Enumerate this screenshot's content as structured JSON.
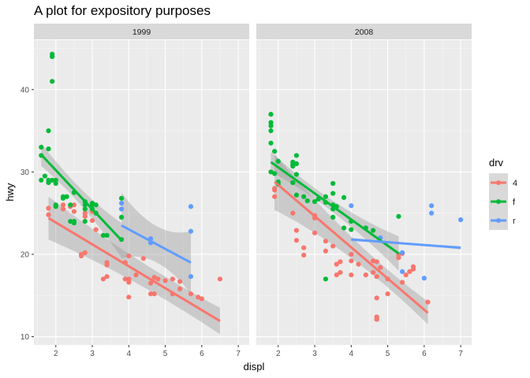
{
  "chart_data": {
    "type": "scatter",
    "title": "A plot for expository purposes",
    "xlabel": "displ",
    "ylabel": "hwy",
    "xlim": [
      1.4,
      7.3
    ],
    "ylim": [
      9,
      46
    ],
    "x_ticks": [
      2,
      3,
      4,
      5,
      6,
      7
    ],
    "y_ticks": [
      10,
      20,
      30,
      40
    ],
    "legend": {
      "title": "drv",
      "position": "right",
      "entries": [
        {
          "key": "4",
          "label": "4",
          "color": "#F8766D"
        },
        {
          "key": "f",
          "label": "f",
          "color": "#00BA38"
        },
        {
          "key": "r",
          "label": "r",
          "color": "#619CFF"
        }
      ]
    },
    "facets": [
      {
        "label": "1999",
        "points": {
          "4": [
            [
              1.8,
              25.6
            ],
            [
              1.8,
              24.8
            ],
            [
              2.2,
              26
            ],
            [
              2.2,
              25.5
            ],
            [
              2.4,
              25.8
            ],
            [
              2.5,
              26
            ],
            [
              2.5,
              25.2
            ],
            [
              2.7,
              20
            ],
            [
              2.7,
              19.8
            ],
            [
              2.8,
              20.2
            ],
            [
              2.8,
              25
            ],
            [
              2.8,
              24.6
            ],
            [
              3.0,
              25.2
            ],
            [
              3.0,
              24.1
            ],
            [
              3.1,
              23
            ],
            [
              3.3,
              17
            ],
            [
              3.4,
              17.3
            ],
            [
              3.4,
              19
            ],
            [
              3.4,
              18.7
            ],
            [
              3.9,
              19
            ],
            [
              3.9,
              17
            ],
            [
              4.0,
              19.8
            ],
            [
              4.0,
              17
            ],
            [
              4.0,
              16.8
            ],
            [
              4.0,
              16.6
            ],
            [
              4.0,
              14.8
            ],
            [
              4.2,
              17.5
            ],
            [
              4.4,
              19.5
            ],
            [
              4.6,
              16.5
            ],
            [
              4.6,
              15.2
            ],
            [
              4.7,
              17.2
            ],
            [
              4.7,
              15.2
            ],
            [
              4.8,
              17
            ],
            [
              5.0,
              16.8
            ],
            [
              5.2,
              17
            ],
            [
              5.2,
              15.2
            ],
            [
              5.4,
              16.7
            ],
            [
              5.4,
              15.8
            ],
            [
              5.7,
              15.2
            ],
            [
              5.9,
              14.8
            ],
            [
              6.0,
              14.6
            ],
            [
              6.5,
              17
            ]
          ],
          "f": [
            [
              1.6,
              32
            ],
            [
              1.6,
              29
            ],
            [
              1.6,
              33
            ],
            [
              1.7,
              29.5
            ],
            [
              1.8,
              35
            ],
            [
              1.8,
              32.8
            ],
            [
              1.8,
              29
            ],
            [
              1.8,
              28.7
            ],
            [
              1.9,
              44
            ],
            [
              1.9,
              44.3
            ],
            [
              1.9,
              41
            ],
            [
              1.9,
              29
            ],
            [
              2.0,
              28.6
            ],
            [
              2.0,
              29
            ],
            [
              2.0,
              26
            ],
            [
              2.0,
              25.8
            ],
            [
              2.2,
              27
            ],
            [
              2.2,
              26.8
            ],
            [
              2.3,
              27
            ],
            [
              2.4,
              26
            ],
            [
              2.4,
              24
            ],
            [
              2.5,
              27.5
            ],
            [
              2.5,
              24
            ],
            [
              2.5,
              23.8
            ],
            [
              2.8,
              26
            ],
            [
              2.8,
              25.5
            ],
            [
              2.8,
              26.4
            ],
            [
              2.8,
              24
            ],
            [
              3.0,
              26.2
            ],
            [
              3.0,
              26
            ],
            [
              3.0,
              25.5
            ],
            [
              3.1,
              26
            ],
            [
              3.1,
              25
            ],
            [
              3.3,
              22.3
            ],
            [
              3.4,
              22.3
            ],
            [
              3.8,
              26.8
            ],
            [
              3.8,
              24.5
            ],
            [
              3.8,
              21.8
            ]
          ],
          "r": [
            [
              3.8,
              26.2
            ],
            [
              3.8,
              25.5
            ],
            [
              4.6,
              21.9
            ],
            [
              4.6,
              21.4
            ],
            [
              5.7,
              25.8
            ],
            [
              5.7,
              22.8
            ],
            [
              5.7,
              17.3
            ]
          ]
        },
        "trend": {
          "4": {
            "x": [
              1.8,
              6.5
            ],
            "y": [
              24.4,
              11.9
            ],
            "band": [
              2.6,
              1.5,
              1.6
            ]
          },
          "f": {
            "x": [
              1.6,
              3.8
            ],
            "y": [
              32.1,
              21.7
            ],
            "band": [
              1.4,
              1.0,
              2.1
            ]
          },
          "r": {
            "x": [
              3.8,
              5.7
            ],
            "y": [
              23.5,
              19.0
            ],
            "band": [
              4.0,
              2.2,
              3.8
            ]
          }
        }
      },
      {
        "label": "2008",
        "points": {
          "4": [
            [
              1.9,
              28
            ],
            [
              1.9,
              27.8
            ],
            [
              1.9,
              27
            ],
            [
              2.0,
              28.7
            ],
            [
              2.4,
              25
            ],
            [
              2.5,
              22.9
            ],
            [
              2.5,
              21.7
            ],
            [
              2.7,
              20.8
            ],
            [
              2.7,
              19.9
            ],
            [
              3.0,
              24.7
            ],
            [
              3.0,
              24.4
            ],
            [
              3.0,
              22.6
            ],
            [
              3.3,
              21.6
            ],
            [
              3.3,
              20.4
            ],
            [
              3.5,
              21
            ],
            [
              3.6,
              18.8
            ],
            [
              3.6,
              17.5
            ],
            [
              3.7,
              19.1
            ],
            [
              3.7,
              17.8
            ],
            [
              4.0,
              20
            ],
            [
              4.0,
              19.2
            ],
            [
              4.0,
              17.5
            ],
            [
              4.2,
              18.8
            ],
            [
              4.4,
              17.5
            ],
            [
              4.6,
              19.2
            ],
            [
              4.6,
              17.8
            ],
            [
              4.7,
              19.1
            ],
            [
              4.7,
              17.3
            ],
            [
              4.7,
              14.7
            ],
            [
              4.7,
              12.4
            ],
            [
              4.7,
              12.1
            ],
            [
              4.8,
              18.4
            ],
            [
              5.0,
              17
            ],
            [
              5.0,
              15.2
            ],
            [
              5.3,
              20
            ],
            [
              5.3,
              19.6
            ],
            [
              5.4,
              16.6
            ],
            [
              5.4,
              20.1
            ],
            [
              5.5,
              17.5
            ],
            [
              5.6,
              17.9
            ],
            [
              5.7,
              18.5
            ],
            [
              5.7,
              18.2
            ],
            [
              6.1,
              14.2
            ]
          ],
          "f": [
            [
              1.8,
              35
            ],
            [
              1.8,
              36
            ],
            [
              1.8,
              37
            ],
            [
              1.8,
              35.6
            ],
            [
              1.8,
              33.5
            ],
            [
              1.8,
              30
            ],
            [
              1.9,
              32.5
            ],
            [
              1.9,
              29.8
            ],
            [
              2.0,
              31.3
            ],
            [
              2.0,
              28.8
            ],
            [
              2.0,
              28.5
            ],
            [
              2.4,
              31.2
            ],
            [
              2.4,
              30.9
            ],
            [
              2.4,
              30.7
            ],
            [
              2.4,
              28.7
            ],
            [
              2.5,
              32
            ],
            [
              2.5,
              31
            ],
            [
              2.5,
              29.7
            ],
            [
              2.5,
              27.2
            ],
            [
              2.7,
              27
            ],
            [
              2.8,
              26.5
            ],
            [
              3.0,
              26.4
            ],
            [
              3.1,
              26.7
            ],
            [
              3.3,
              27
            ],
            [
              3.3,
              26.3
            ],
            [
              3.3,
              17
            ],
            [
              3.5,
              28.6
            ],
            [
              3.5,
              27.4
            ],
            [
              3.5,
              26
            ],
            [
              3.5,
              25.5
            ],
            [
              3.5,
              24.5
            ],
            [
              3.6,
              25.8
            ],
            [
              3.8,
              26.9
            ],
            [
              3.8,
              23.2
            ],
            [
              4.0,
              24
            ],
            [
              4.0,
              23
            ],
            [
              4.4,
              23.2
            ],
            [
              4.6,
              22.9
            ],
            [
              5.3,
              24.6
            ]
          ],
          "r": [
            [
              4.0,
              25.9
            ],
            [
              4.8,
              22
            ],
            [
              5.4,
              20.2
            ],
            [
              5.4,
              17.9
            ],
            [
              6.0,
              17.1
            ],
            [
              6.2,
              25.9
            ],
            [
              6.2,
              25
            ],
            [
              7.0,
              24.2
            ]
          ]
        },
        "trend": {
          "4": {
            "x": [
              1.9,
              6.1
            ],
            "y": [
              28.8,
              12.9
            ],
            "band": [
              3.4,
              1.3,
              1.4
            ]
          },
          "f": {
            "x": [
              1.8,
              5.3
            ],
            "y": [
              31.2,
              20.1
            ],
            "band": [
              1.2,
              0.7,
              2.1
            ]
          },
          "r": {
            "x": [
              4.0,
              7.0
            ],
            "y": [
              21.8,
              20.8
            ],
            "band": [
              0.2,
              0.1,
              0.2
            ]
          }
        }
      }
    ]
  }
}
